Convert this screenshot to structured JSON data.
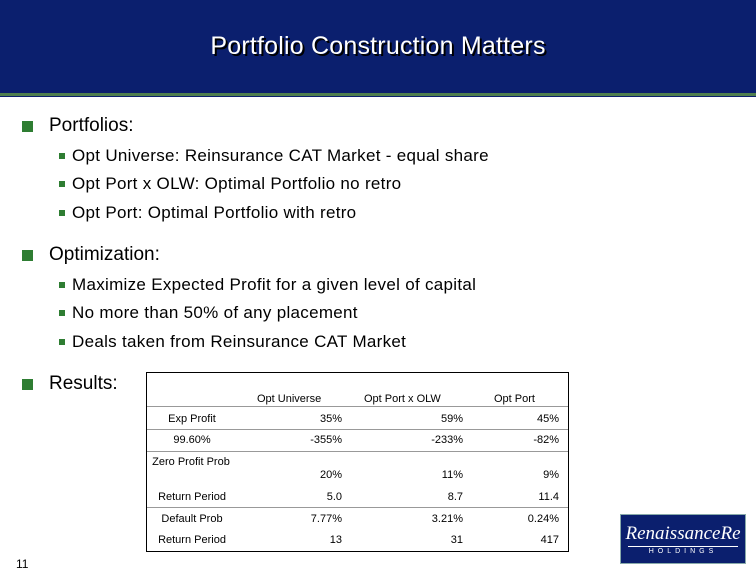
{
  "slide": {
    "title": "Portfolio Construction Matters",
    "page_number": "11"
  },
  "sections": [
    {
      "heading": "Portfolios:",
      "items": [
        "Opt Universe: Reinsurance CAT Market - equal share",
        "Opt Port x OLW: Optimal Portfolio no retro",
        "Opt Port: Optimal Portfolio with retro"
      ]
    },
    {
      "heading": "Optimization:",
      "items": [
        "Maximize Expected Profit for a given level of capital",
        "No more than 50% of any placement",
        "Deals taken from Reinsurance CAT Market"
      ]
    },
    {
      "heading": "Results:",
      "items": []
    }
  ],
  "table": {
    "columns": [
      "Opt Universe",
      "Opt Port x OLW",
      "Opt Port"
    ],
    "rows": [
      {
        "label": "Exp Profit",
        "values": [
          "35%",
          "59%",
          "45%"
        ]
      },
      {
        "label": "99.60%",
        "values": [
          "-355%",
          "-233%",
          "-82%"
        ]
      },
      {
        "label": "Zero Profit Prob",
        "values": [
          "20%",
          "11%",
          "9%"
        ]
      },
      {
        "label": "Return Period",
        "values": [
          "5.0",
          "8.7",
          "11.4"
        ]
      },
      {
        "label": "Default Prob",
        "values": [
          "7.77%",
          "3.21%",
          "0.24%"
        ]
      },
      {
        "label": "Return Period",
        "values": [
          "13",
          "31",
          "417"
        ]
      }
    ]
  },
  "logo": {
    "name": "RenaissanceRe",
    "subtitle": "HOLDINGS"
  },
  "colors": {
    "header_bg": "#0b1f6e",
    "bullet": "#2e7d32",
    "rule": "#4f7f4f"
  }
}
